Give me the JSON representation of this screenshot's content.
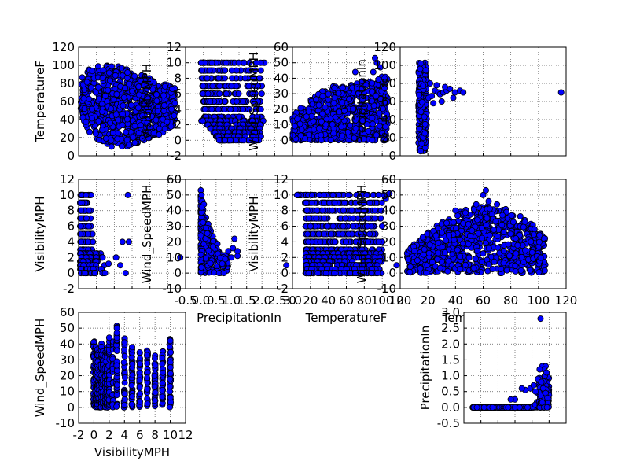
{
  "colors": {
    "marker_fill": "#0000ff",
    "marker_edge": "#000000",
    "grid": "#555555",
    "frame": "#000000"
  },
  "chart_data": [
    {
      "type": "scatter",
      "id": "p11",
      "ylabel": "TemperatureF",
      "xlabel": "",
      "ylim": [
        0,
        120
      ],
      "yticks": [
        "0",
        "20",
        "40",
        "60",
        "80",
        "100",
        "120"
      ],
      "xlim": [
        0,
        10
      ],
      "xticks": [],
      "grid": true,
      "cloud": {
        "shape": "blob",
        "xs": [
          0.2,
          9.0
        ],
        "ys": [
          [
            45,
            85
          ],
          [
            20,
            100
          ],
          [
            10,
            100
          ],
          [
            10,
            100
          ],
          [
            10,
            95
          ],
          [
            15,
            90
          ],
          [
            20,
            85
          ],
          [
            25,
            80
          ],
          [
            35,
            75
          ]
        ],
        "n": 900,
        "seed": 11
      }
    },
    {
      "type": "scatter",
      "id": "p12",
      "ylabel": "VisibilityMPH",
      "xlabel": "",
      "ylim": [
        -2,
        12
      ],
      "yticks": [
        "-2",
        "0",
        "2",
        "4",
        "6",
        "8",
        "10",
        "12"
      ],
      "xlim": [
        -0.5,
        3.0
      ],
      "xticks": [],
      "grid": true,
      "cloud": {
        "shape": "rows",
        "rows": [
          [
            10,
            0.0,
            2.2
          ],
          [
            9,
            0.02,
            2.0
          ],
          [
            8,
            0.03,
            2.0
          ],
          [
            7,
            0.05,
            2.0
          ],
          [
            6,
            0.05,
            2.0
          ],
          [
            5,
            0.08,
            2.0
          ],
          [
            4,
            0.1,
            2.0
          ],
          [
            3,
            0.12,
            2.0
          ],
          [
            2.5,
            0.02,
            2.1
          ],
          [
            2,
            0.2,
            2.0
          ],
          [
            1.5,
            0.3,
            2.0
          ],
          [
            1,
            0.4,
            2.0
          ],
          [
            0.5,
            0.5,
            2.0
          ],
          [
            0,
            0.6,
            2.0
          ]
        ],
        "per_row": 40,
        "seed": 12
      }
    },
    {
      "type": "scatter",
      "id": "p13",
      "ylabel": "Wind_SpeedMPH",
      "xlabel": "",
      "ylim": [
        -10,
        60
      ],
      "yticks": [
        "0",
        "10",
        "20",
        "30",
        "40",
        "50",
        "60"
      ],
      "xlim": [
        0,
        120
      ],
      "xticks": [],
      "grid": true,
      "cloud": {
        "shape": "band",
        "xs": [
          0,
          106
        ],
        "ys": [
          [
            0,
            15
          ],
          [
            0,
            23
          ],
          [
            0,
            28
          ],
          [
            0,
            33
          ],
          [
            0,
            35
          ],
          [
            0,
            35
          ],
          [
            0,
            37
          ],
          [
            0,
            38
          ],
          [
            0,
            40
          ],
          [
            0,
            45
          ]
        ],
        "n": 800,
        "seed": 13
      },
      "points": [
        [
          92,
          53
        ],
        [
          94,
          50
        ],
        [
          98,
          47
        ],
        [
          90,
          44
        ],
        [
          70,
          44
        ]
      ]
    },
    {
      "type": "scatter",
      "id": "p14",
      "ylabel": "PrecipitationIn",
      "xlabel": "",
      "ylim": [
        0,
        120
      ],
      "yticks": [
        "0",
        "20",
        "40",
        "60",
        "80",
        "100",
        "120"
      ],
      "xlim": [
        0,
        10
      ],
      "xticks": [],
      "grid": true,
      "cloud": {
        "shape": "spike",
        "xs": [
          1.1,
          1.6
        ],
        "ys": [
          5,
          103
        ],
        "n": 300,
        "seed": 14
      },
      "points": [
        [
          1.6,
          62
        ],
        [
          1.7,
          64
        ],
        [
          1.9,
          66
        ],
        [
          2.1,
          72
        ],
        [
          2.3,
          70
        ],
        [
          2.4,
          68
        ],
        [
          2.6,
          70
        ],
        [
          2.8,
          72
        ],
        [
          3.0,
          74
        ],
        [
          3.3,
          70
        ],
        [
          3.6,
          72
        ],
        [
          3.8,
          70
        ],
        [
          3.2,
          64
        ],
        [
          2.5,
          60
        ],
        [
          2.0,
          58
        ],
        [
          9.7,
          70
        ],
        [
          1.8,
          80
        ],
        [
          2.2,
          78
        ],
        [
          2.7,
          76
        ]
      ]
    },
    {
      "type": "scatter",
      "id": "p21",
      "ylabel": "VisibilityMPH",
      "xlabel": "",
      "ylim": [
        -2,
        12
      ],
      "yticks": [
        "-2",
        "0",
        "2",
        "4",
        "6",
        "8",
        "10",
        "12"
      ],
      "xlim": [
        0,
        10
      ],
      "xticks": [],
      "grid": true,
      "cloud": {
        "shape": "rows",
        "rows": [
          [
            10,
            0.15,
            1.3
          ],
          [
            9,
            0.15,
            1.2
          ],
          [
            8,
            0.15,
            1.2
          ],
          [
            7,
            0.15,
            1.2
          ],
          [
            6,
            0.15,
            1.3
          ],
          [
            5,
            0.15,
            1.3
          ],
          [
            4,
            0.15,
            1.6
          ],
          [
            3,
            0.15,
            1.8
          ],
          [
            2.5,
            0.15,
            2.2
          ],
          [
            2,
            0.15,
            2.4
          ],
          [
            1.5,
            0.15,
            2.0
          ],
          [
            1,
            0.15,
            2.4
          ],
          [
            0.5,
            0.15,
            2.2
          ],
          [
            0,
            0.15,
            2.8
          ]
        ],
        "per_row": 18,
        "seed": 21
      },
      "points": [
        [
          4.6,
          10
        ],
        [
          4.7,
          4
        ],
        [
          4.4,
          0
        ],
        [
          4.1,
          4
        ],
        [
          3.5,
          2
        ],
        [
          9.5,
          2
        ],
        [
          3.9,
          1
        ],
        [
          2.8,
          1.2
        ]
      ]
    },
    {
      "type": "scatter",
      "id": "p22",
      "ylabel": "Wind_SpeedMPH",
      "xlabel": "PrecipitationIn",
      "ylim": [
        -10,
        60
      ],
      "yticks": [
        "-10",
        "0",
        "10",
        "20",
        "30",
        "40",
        "50",
        "60"
      ],
      "xlim": [
        -0.5,
        3.0
      ],
      "xticks": [
        "-0.5",
        "0.0",
        "0.5",
        "1.0",
        "1.5",
        "2.0",
        "2.5",
        "3.0"
      ],
      "grid": true,
      "cloud": {
        "shape": "decay",
        "x0": 0.0,
        "n": 260,
        "seed": 22
      },
      "points": [
        [
          0.0,
          53
        ],
        [
          0.02,
          50
        ],
        [
          0.05,
          46
        ],
        [
          0.1,
          44
        ],
        [
          0.03,
          42
        ],
        [
          1.1,
          22
        ],
        [
          1.2,
          14
        ],
        [
          1.2,
          11
        ],
        [
          1.0,
          10
        ],
        [
          0.9,
          14
        ],
        [
          0.8,
          9
        ],
        [
          0.7,
          6
        ],
        [
          0.6,
          0
        ],
        [
          0.75,
          0
        ],
        [
          2.8,
          5
        ],
        [
          1.05,
          16
        ]
      ]
    },
    {
      "type": "scatter",
      "id": "p23",
      "ylabel": "VisibilityMPH",
      "xlabel": "TemperatureF",
      "ylim": [
        -2,
        12
      ],
      "yticks": [
        "-2",
        "0",
        "2",
        "4",
        "6",
        "8",
        "10",
        "12"
      ],
      "xlim": [
        0,
        120
      ],
      "xticks": [
        "0",
        "20",
        "40",
        "60",
        "80",
        "100",
        "120"
      ],
      "grid": true,
      "cloud": {
        "shape": "rows",
        "rows": [
          [
            10,
            5,
            106
          ],
          [
            9,
            14,
            100
          ],
          [
            8,
            15,
            100
          ],
          [
            7,
            15,
            100
          ],
          [
            6,
            15,
            100
          ],
          [
            5,
            15,
            100
          ],
          [
            4,
            15,
            100
          ],
          [
            3,
            15,
            100
          ],
          [
            2.5,
            15,
            100
          ],
          [
            2,
            15,
            100
          ],
          [
            1.5,
            15,
            100
          ],
          [
            1,
            15,
            100
          ],
          [
            0.5,
            15,
            100
          ],
          [
            0,
            15,
            100
          ]
        ],
        "per_row": 70,
        "seed": 23
      },
      "points": [
        [
          116,
          1
        ],
        [
          108,
          10.2
        ],
        [
          104,
          9.5
        ]
      ]
    },
    {
      "type": "scatter",
      "id": "p24",
      "ylabel": "Wind_SpeedMPH",
      "xlabel": "TemperatureF",
      "ylim": [
        -10,
        60
      ],
      "yticks": [
        "-10",
        "0",
        "10",
        "20",
        "30",
        "40",
        "50",
        "60"
      ],
      "xlim": [
        0,
        120
      ],
      "xticks": [
        "0",
        "20",
        "40",
        "60",
        "80",
        "100",
        "120"
      ],
      "grid": true,
      "cloud": {
        "shape": "blob",
        "xs": [
          5,
          105
        ],
        "ys": [
          [
            0,
            15
          ],
          [
            0,
            22
          ],
          [
            0,
            30
          ],
          [
            0,
            35
          ],
          [
            0,
            40
          ],
          [
            0,
            42
          ],
          [
            0,
            44
          ],
          [
            0,
            42
          ],
          [
            0,
            38
          ],
          [
            0,
            32
          ],
          [
            0,
            22
          ]
        ],
        "n": 900,
        "seed": 24
      },
      "points": [
        [
          62,
          53
        ],
        [
          60,
          50
        ],
        [
          64,
          46
        ],
        [
          55,
          44
        ],
        [
          70,
          44
        ],
        [
          40,
          40
        ]
      ]
    },
    {
      "type": "scatter",
      "id": "p31",
      "ylabel": "Wind_SpeedMPH",
      "xlabel": "VisibilityMPH",
      "ylim": [
        -10,
        60
      ],
      "yticks": [
        "-10",
        "0",
        "10",
        "20",
        "30",
        "40",
        "50",
        "60"
      ],
      "xlim": [
        -2,
        12
      ],
      "xticks": [
        "-2",
        "0",
        "2",
        "4",
        "6",
        "8",
        "10",
        "12"
      ],
      "grid": true,
      "cloud": {
        "shape": "cols",
        "cols": [
          [
            0,
            0,
            42
          ],
          [
            0.25,
            0,
            38
          ],
          [
            0.5,
            0,
            38
          ],
          [
            0.75,
            0,
            36
          ],
          [
            1,
            0,
            42
          ],
          [
            1.25,
            0,
            38
          ],
          [
            1.5,
            0,
            36
          ],
          [
            1.75,
            0,
            38
          ],
          [
            2,
            0,
            44
          ],
          [
            2.5,
            0,
            42
          ],
          [
            3,
            0,
            53
          ],
          [
            4,
            0,
            44
          ],
          [
            5,
            0,
            40
          ],
          [
            6,
            0,
            35
          ],
          [
            7,
            0,
            36
          ],
          [
            8,
            0,
            35
          ],
          [
            9,
            0,
            36
          ],
          [
            10,
            0,
            44
          ]
        ],
        "per_col": 40,
        "seed": 31
      },
      "points": [
        [
          3,
          50
        ],
        [
          3,
          47
        ],
        [
          10,
          42
        ],
        [
          4,
          41
        ],
        [
          2,
          44
        ],
        [
          5,
          38
        ]
      ]
    },
    {
      "type": "scatter",
      "id": "p34",
      "ylabel": "PrecipitationIn",
      "xlabel": "",
      "ylim": [
        -0.5,
        3.0
      ],
      "yticks": [
        "-0.5",
        "0.0",
        "0.5",
        "1.0",
        "1.5",
        "2.0",
        "2.5",
        "3.0"
      ],
      "xlim": [
        0,
        120
      ],
      "xticks": [],
      "grid": true,
      "cloud": {
        "shape": "hockey",
        "n": 220,
        "seed": 34
      },
      "points": [
        [
          90,
          2.8
        ],
        [
          92,
          1.3
        ],
        [
          96,
          1.3
        ],
        [
          94,
          1.2
        ],
        [
          89,
          1.2
        ],
        [
          95,
          1.0
        ],
        [
          87,
          0.9
        ],
        [
          91,
          0.8
        ],
        [
          84,
          0.5
        ],
        [
          78,
          0.6
        ],
        [
          72,
          0.55
        ],
        [
          68,
          0.6
        ],
        [
          60,
          0.25
        ],
        [
          55,
          0.25
        ],
        [
          82,
          0.7
        ],
        [
          97,
          1.1
        ],
        [
          93,
          0.6
        ],
        [
          96,
          0.45
        ],
        [
          98,
          0.3
        ]
      ]
    }
  ]
}
